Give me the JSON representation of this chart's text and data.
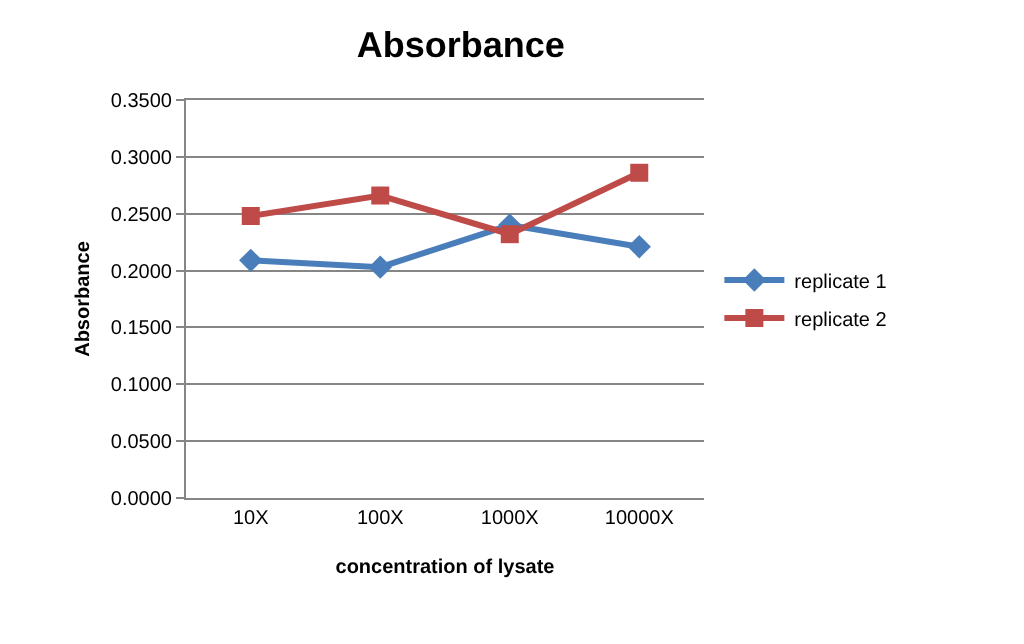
{
  "chart_data": {
    "type": "line",
    "title": "Absorbance",
    "xlabel": "concentration of lysate",
    "ylabel": "Absorbance",
    "categories": [
      "10X",
      "100X",
      "1000X",
      "10000X"
    ],
    "series": [
      {
        "name": "replicate 1",
        "color": "#4a7ebb",
        "marker": "diamond",
        "values": [
          0.209,
          0.203,
          0.24,
          0.221
        ]
      },
      {
        "name": "replicate 2",
        "color": "#be4b48",
        "marker": "square",
        "values": [
          0.248,
          0.266,
          0.232,
          0.286
        ]
      }
    ],
    "ylim": [
      0,
      0.35
    ],
    "yticks": [
      {
        "value": 0,
        "label": "0.0000"
      },
      {
        "value": 0.05,
        "label": "0.0500"
      },
      {
        "value": 0.1,
        "label": "0.1000"
      },
      {
        "value": 0.15,
        "label": "0.1500"
      },
      {
        "value": 0.2,
        "label": "0.2000"
      },
      {
        "value": 0.25,
        "label": "0.2500"
      },
      {
        "value": 0.3,
        "label": "0.3000"
      },
      {
        "value": 0.35,
        "label": "0.3500"
      }
    ],
    "grid": "y",
    "legend": "right",
    "line_style": "solid"
  }
}
